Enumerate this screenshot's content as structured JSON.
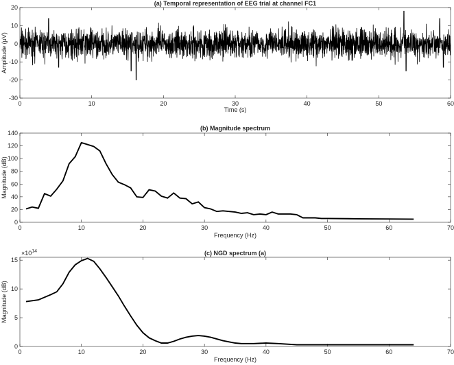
{
  "chart_data": [
    {
      "type": "line",
      "title": "(a) Temporal representation of EEG trial at channel FC1",
      "xlabel": "Time (s)",
      "ylabel": "Amplitude (μV)",
      "xlim": [
        0,
        60
      ],
      "ylim": [
        -30,
        20
      ],
      "xticks": [
        0,
        10,
        20,
        30,
        40,
        50,
        60
      ],
      "yticks": [
        -30,
        -20,
        -10,
        0,
        10,
        20
      ],
      "grid": false,
      "signal": {
        "duration_s": 60,
        "baseline": 0,
        "typical_range": [
          -12,
          12
        ],
        "extremes": [
          {
            "x": 4.0,
            "y": 14
          },
          {
            "x": 5.4,
            "y": -13
          },
          {
            "x": 16.2,
            "y": -20
          },
          {
            "x": 15.5,
            "y": -15
          },
          {
            "x": 53.5,
            "y": 18
          },
          {
            "x": 53.8,
            "y": -15
          },
          {
            "x": 58.5,
            "y": 14
          },
          {
            "x": 59.0,
            "y": -13
          }
        ]
      }
    },
    {
      "type": "line",
      "title": "(b) Magnitude spectrum",
      "xlabel": "Frequency (Hz)",
      "ylabel": "Magnitude (dB)",
      "xlim": [
        0,
        70
      ],
      "ylim": [
        0,
        140
      ],
      "xticks": [
        0,
        10,
        20,
        30,
        40,
        50,
        60,
        70
      ],
      "yticks": [
        0,
        20,
        40,
        60,
        80,
        100,
        120,
        140
      ],
      "grid": false,
      "x": [
        1,
        2,
        3,
        4,
        5,
        6,
        7,
        8,
        9,
        10,
        11,
        12,
        13,
        14,
        15,
        16,
        17,
        18,
        19,
        20,
        21,
        22,
        23,
        24,
        25,
        26,
        27,
        28,
        29,
        30,
        31,
        32,
        33,
        34,
        35,
        36,
        37,
        38,
        39,
        40,
        41,
        42,
        43,
        44,
        45,
        46,
        47,
        48,
        49,
        50,
        55,
        60,
        64
      ],
      "y": [
        21,
        24,
        22,
        45,
        41,
        52,
        65,
        92,
        103,
        125,
        122,
        119,
        112,
        92,
        75,
        63,
        59,
        54,
        40,
        39,
        51,
        49,
        41,
        38,
        46,
        38,
        37,
        29,
        32,
        23,
        21,
        17,
        18,
        17,
        16,
        14,
        15,
        12,
        13,
        12,
        16,
        13,
        13,
        13,
        12,
        7,
        7,
        7,
        6,
        6,
        5.5,
        5.2,
        5
      ]
    },
    {
      "type": "line",
      "title": "(c) NGD spectrum (a)",
      "xlabel": "Frequency (Hz)",
      "ylabel": "Magnitude (dB)",
      "y_exponent_label": "×10",
      "y_exponent_power": "14",
      "xlim": [
        0,
        70
      ],
      "ylim": [
        0,
        15.5
      ],
      "xticks": [
        0,
        10,
        20,
        30,
        40,
        50,
        60,
        70
      ],
      "yticks": [
        0,
        5,
        10,
        15
      ],
      "grid": false,
      "x": [
        1,
        3,
        5,
        6,
        7,
        8,
        9,
        10,
        11,
        12,
        13,
        14,
        15,
        16,
        17,
        18,
        19,
        20,
        21,
        22,
        23,
        24,
        25,
        26,
        27,
        28,
        29,
        30,
        31,
        32,
        33,
        34,
        35,
        36,
        38,
        40,
        42,
        45,
        50,
        55,
        60,
        64
      ],
      "y": [
        7.8,
        8.1,
        9.0,
        9.5,
        10.9,
        12.9,
        14.2,
        14.9,
        15.3,
        14.8,
        13.5,
        12.0,
        10.4,
        8.8,
        7.0,
        5.3,
        3.7,
        2.4,
        1.5,
        1.0,
        0.6,
        0.6,
        0.9,
        1.3,
        1.6,
        1.8,
        1.9,
        1.8,
        1.6,
        1.3,
        1.0,
        0.8,
        0.6,
        0.5,
        0.5,
        0.6,
        0.5,
        0.3,
        0.3,
        0.3,
        0.3,
        0.3
      ]
    }
  ]
}
